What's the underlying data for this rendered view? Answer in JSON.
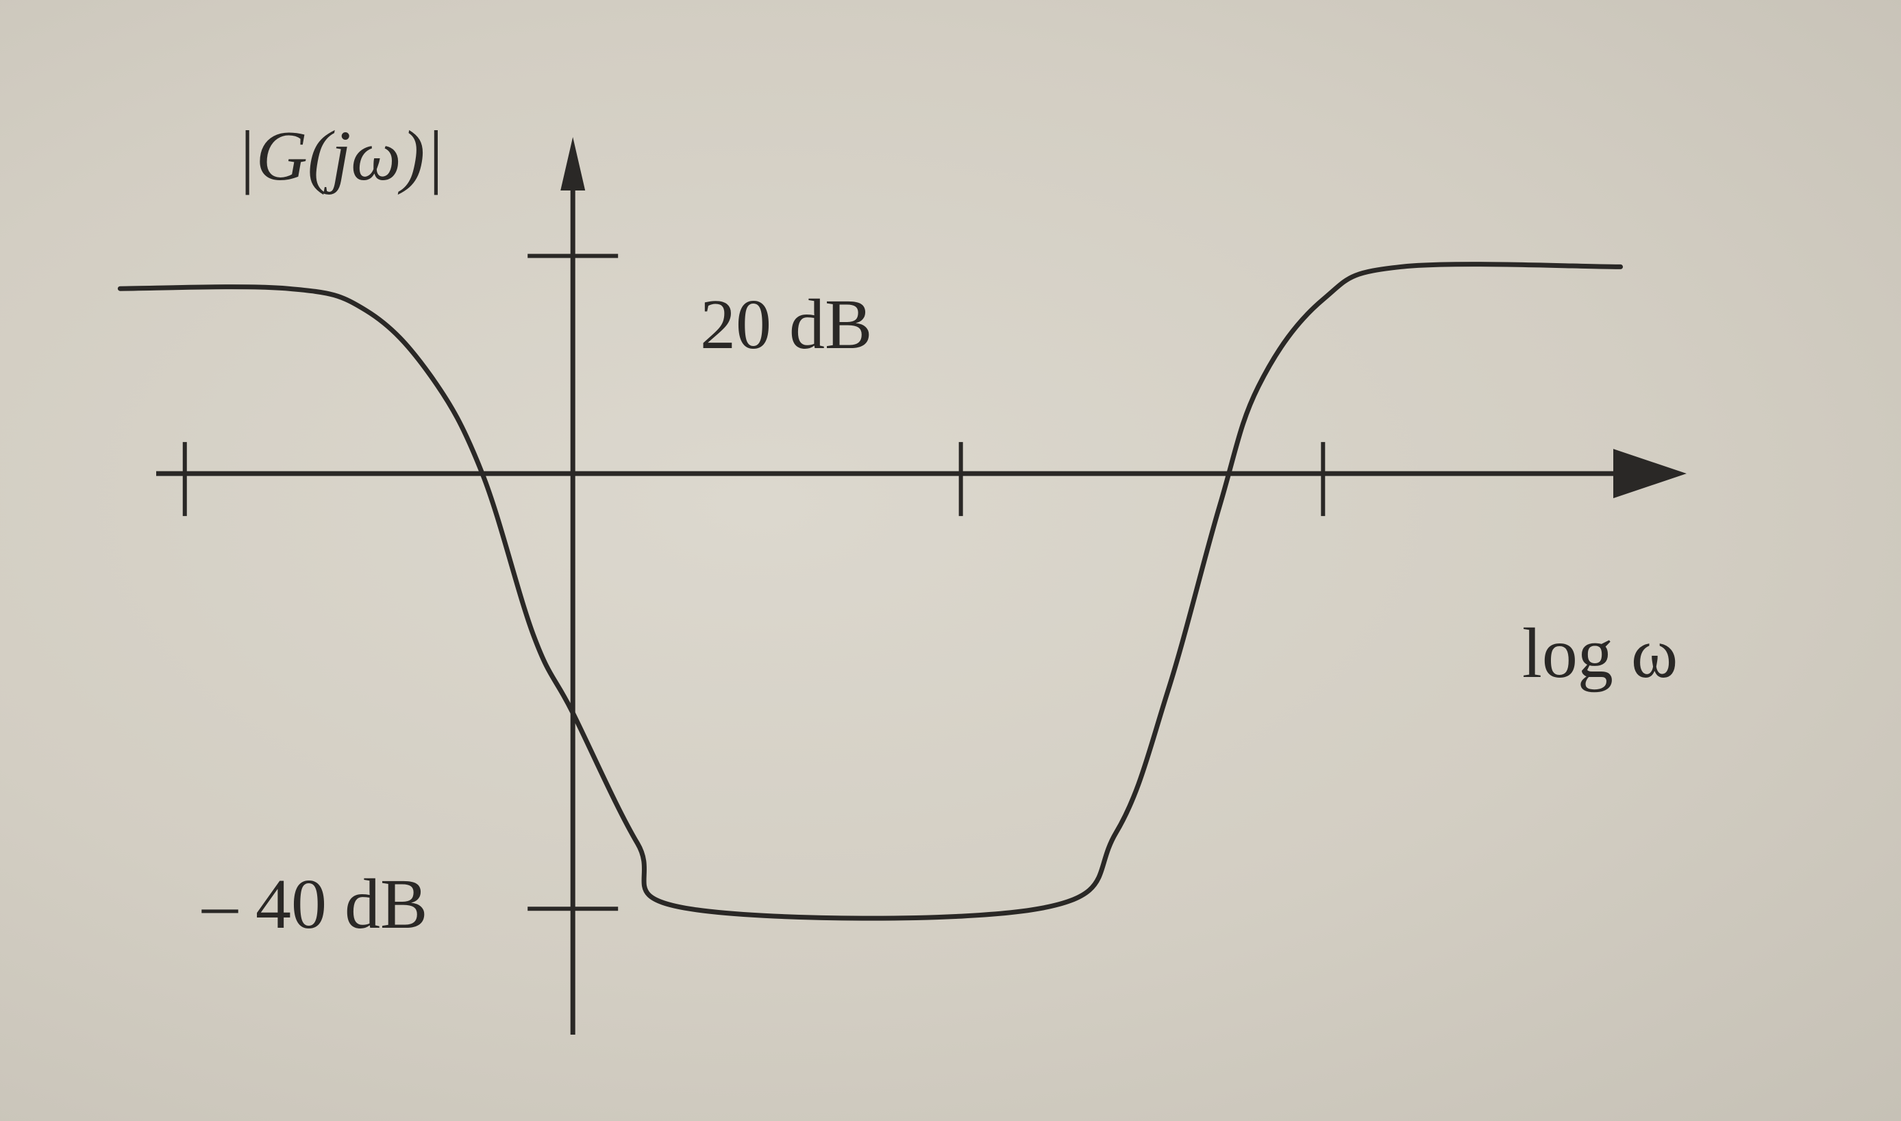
{
  "chart_data": {
    "type": "line",
    "ylabel": "|G(jω)|",
    "xlabel": "log ω",
    "yticks": [
      {
        "value": 20,
        "label": "20 dB"
      },
      {
        "value": -40,
        "label": "– 40 dB"
      }
    ],
    "xlim": [
      -3.2,
      8.6
    ],
    "ylim": [
      -50,
      40
    ],
    "x_ticks": [
      -3,
      3,
      5.8
    ],
    "grid": false,
    "legend": "none",
    "series": [
      {
        "values": [
          {
            "x": -3.5,
            "y": 17
          },
          {
            "x": -2.2,
            "y": 17
          },
          {
            "x": -1.6,
            "y": 15
          },
          {
            "x": -1.1,
            "y": 9
          },
          {
            "x": -0.7,
            "y": 0
          },
          {
            "x": -0.3,
            "y": -15
          },
          {
            "x": 0.0,
            "y": -22
          },
          {
            "x": 0.5,
            "y": -34
          },
          {
            "x": 0.9,
            "y": -40
          },
          {
            "x": 3.6,
            "y": -40
          },
          {
            "x": 4.2,
            "y": -33
          },
          {
            "x": 4.6,
            "y": -20
          },
          {
            "x": 5.0,
            "y": -3
          },
          {
            "x": 5.3,
            "y": 8
          },
          {
            "x": 5.8,
            "y": 16
          },
          {
            "x": 6.4,
            "y": 19
          },
          {
            "x": 8.1,
            "y": 19
          }
        ]
      }
    ]
  },
  "colors": {
    "ink": "#2a2826",
    "paper": "#d6d1c6"
  }
}
